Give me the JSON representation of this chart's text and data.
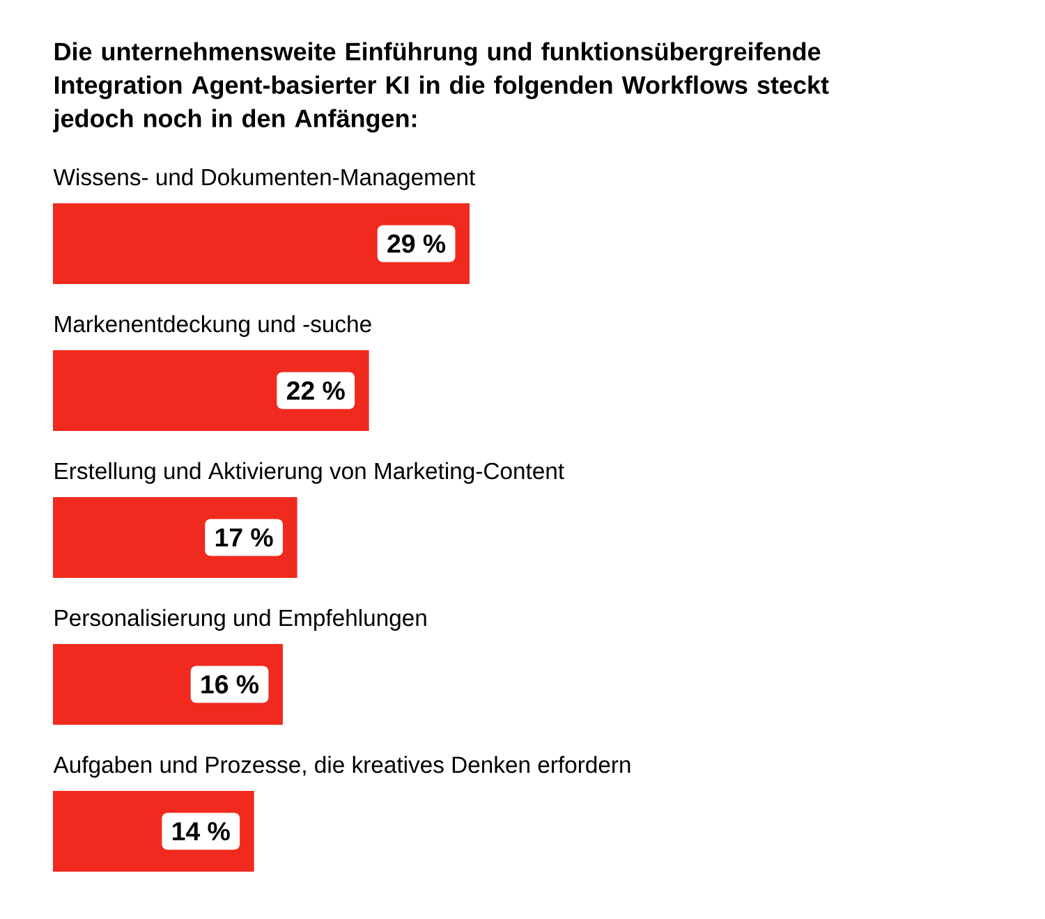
{
  "chart_data": {
    "type": "bar",
    "orientation": "horizontal",
    "title": "Die unternehmensweite Einführung und funktionsübergreifende Integration Agent-basierter KI in die folgenden Workflows steckt jedoch noch in den Anfängen:",
    "categories": [
      "Wissens- und Dokumenten-Management",
      "Markenentdeckung und -suche",
      "Erstellung und Aktivierung von Marketing-Content",
      "Personalisierung und Empfehlungen",
      "Aufgaben und Prozesse, die kreatives Denken erfordern"
    ],
    "values": [
      29,
      22,
      17,
      16,
      14
    ],
    "value_labels": [
      "29 %",
      "22 %",
      "17 %",
      "16 %",
      "14 %"
    ],
    "color": "#f02a1e"
  }
}
